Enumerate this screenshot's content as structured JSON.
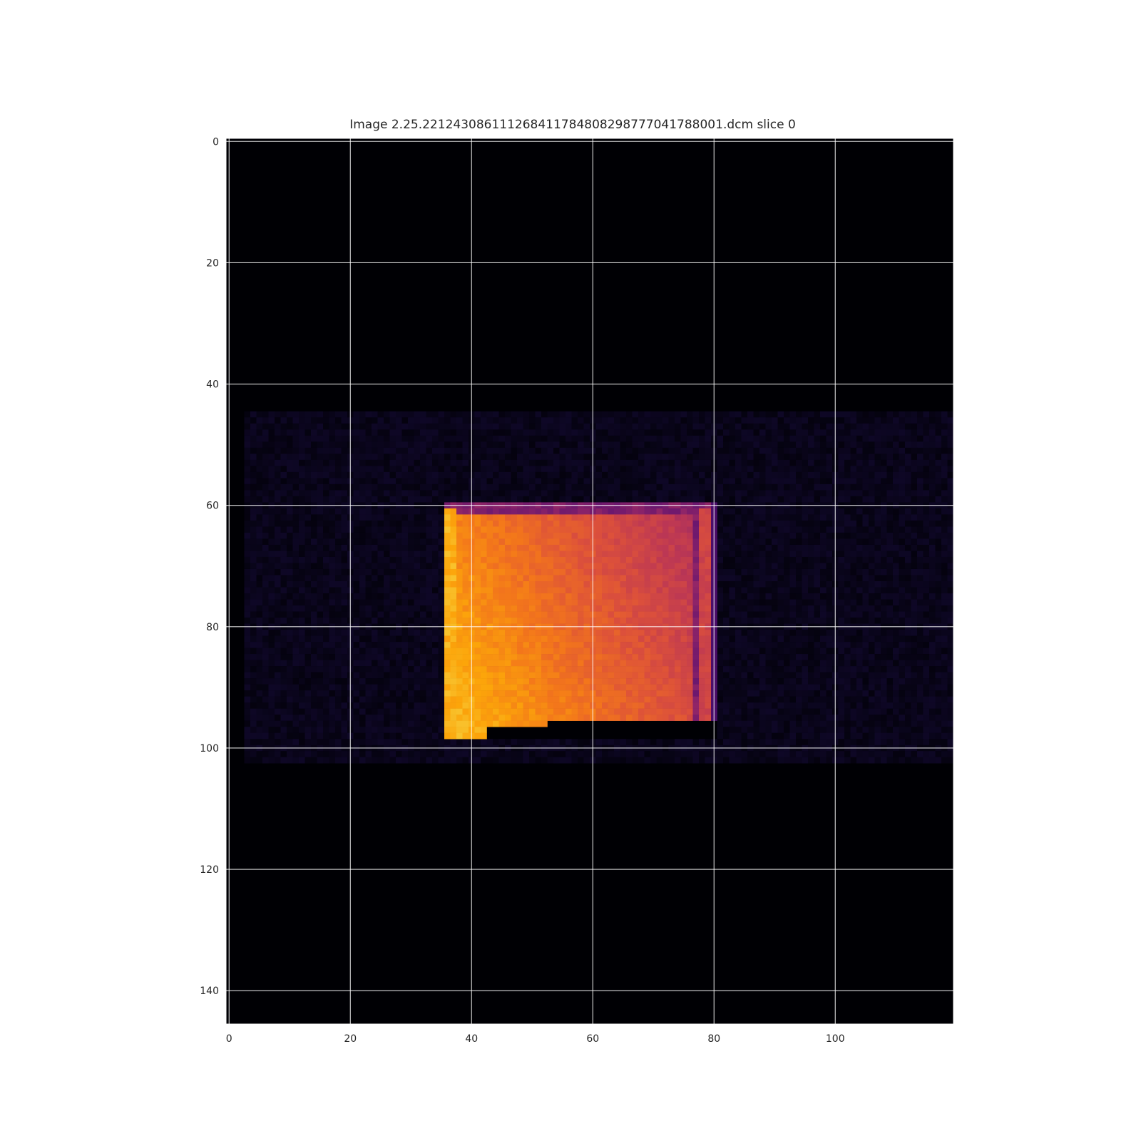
{
  "figure": {
    "title": "Image 2.25.221243086111268411784808298777041788001.dcm slice 0",
    "colormap": "inferno",
    "grid": true,
    "background": "#ffffff",
    "image_background": "#000004"
  },
  "chart_data": {
    "type": "heatmap",
    "title": "Image 2.25.221243086111268411784808298777041788001.dcm slice 0",
    "xlabel": "",
    "ylabel": "",
    "xlim": [
      -0.5,
      119.5
    ],
    "ylim": [
      145.5,
      -0.5
    ],
    "xticks": [
      0,
      20,
      40,
      60,
      80,
      100
    ],
    "yticks": [
      0,
      20,
      40,
      60,
      80,
      100,
      120,
      140
    ],
    "xtick_labels": [
      "0",
      "20",
      "40",
      "60",
      "80",
      "100"
    ],
    "ytick_labels": [
      "0",
      "20",
      "40",
      "60",
      "80",
      "100",
      "120",
      "140"
    ],
    "image_size": {
      "cols": 120,
      "rows": 146
    },
    "regions": [
      {
        "name": "dim background tissue",
        "col_range": [
          3,
          119
        ],
        "row_range": [
          45,
          102
        ],
        "intensity": 0.05
      },
      {
        "name": "bright rectangular region",
        "col_range": [
          36,
          80
        ],
        "row_range": [
          60,
          98
        ],
        "intensity_low": 0.45,
        "intensity_high": 0.85,
        "brightest_corner": "bottom-left"
      },
      {
        "name": "left edge band",
        "col_range": [
          36,
          37
        ],
        "row_range": [
          61,
          98
        ],
        "intensity": 0.82
      },
      {
        "name": "right edge band",
        "col_range": [
          78,
          79
        ],
        "row_range": [
          61,
          96
        ],
        "intensity": 0.55
      }
    ]
  }
}
